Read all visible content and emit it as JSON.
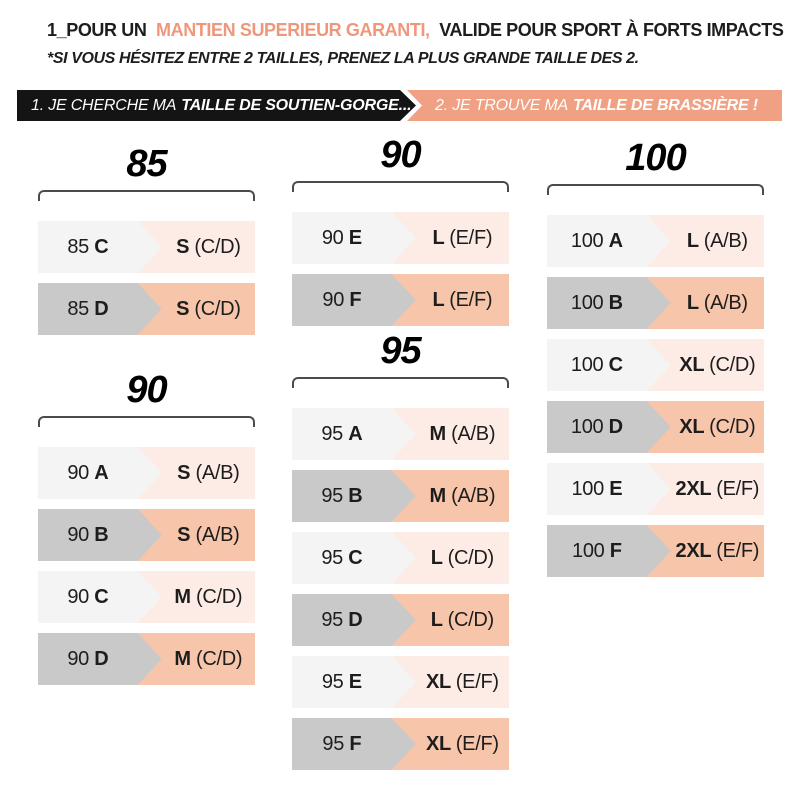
{
  "header": {
    "title_prefix": "1_POUR UN",
    "title_highlight": "MANTIEN SUPERIEUR GARANTI,",
    "title_suffix": "VALIDE POUR SPORT À FORTS IMPACTS",
    "subtitle": "*SI VOUS HÉSITEZ ENTRE 2 TAILLES, PRENEZ LA PLUS GRANDE TAILLE DES 2."
  },
  "steps": {
    "step1": {
      "prefix": "1. JE CHERCHE MA",
      "bold": "TAILLE DE SOUTIEN-GORGE..."
    },
    "step2": {
      "prefix": "2. JE TROUVE MA",
      "bold": "TAILLE DE BRASSIÈRE !"
    }
  },
  "columns": [
    {
      "groups": [
        {
          "title": "85",
          "rows": [
            {
              "from": "85",
              "cup": "C",
              "to": "S",
              "range": "(C/D)"
            },
            {
              "from": "85",
              "cup": "D",
              "to": "S",
              "range": "(C/D)"
            }
          ]
        },
        {
          "title": "90",
          "rows": [
            {
              "from": "90",
              "cup": "A",
              "to": "S",
              "range": "(A/B)"
            },
            {
              "from": "90",
              "cup": "B",
              "to": "S",
              "range": "(A/B)"
            },
            {
              "from": "90",
              "cup": "C",
              "to": "M",
              "range": "(C/D)"
            },
            {
              "from": "90",
              "cup": "D",
              "to": "M",
              "range": "(C/D)"
            }
          ]
        }
      ]
    },
    {
      "groups": [
        {
          "title": "90",
          "rows": [
            {
              "from": "90",
              "cup": "E",
              "to": "L",
              "range": "(E/F)"
            },
            {
              "from": "90",
              "cup": "F",
              "to": "L",
              "range": "(E/F)"
            }
          ]
        },
        {
          "title": "95",
          "rows": [
            {
              "from": "95",
              "cup": "A",
              "to": "M",
              "range": "(A/B)"
            },
            {
              "from": "95",
              "cup": "B",
              "to": "M",
              "range": "(A/B)"
            },
            {
              "from": "95",
              "cup": "C",
              "to": "L",
              "range": "(C/D)"
            },
            {
              "from": "95",
              "cup": "D",
              "to": "L",
              "range": "(C/D)"
            },
            {
              "from": "95",
              "cup": "E",
              "to": "XL",
              "range": "(E/F)"
            },
            {
              "from": "95",
              "cup": "F",
              "to": "XL",
              "range": "(E/F)"
            }
          ]
        }
      ]
    },
    {
      "groups": [
        {
          "title": "100",
          "rows": [
            {
              "from": "100",
              "cup": "A",
              "to": "L",
              "range": "(A/B)"
            },
            {
              "from": "100",
              "cup": "B",
              "to": "L",
              "range": "(A/B)"
            },
            {
              "from": "100",
              "cup": "C",
              "to": "XL",
              "range": "(C/D)"
            },
            {
              "from": "100",
              "cup": "D",
              "to": "XL",
              "range": "(C/D)"
            },
            {
              "from": "100",
              "cup": "E",
              "to": "2XL",
              "range": "(E/F)"
            },
            {
              "from": "100",
              "cup": "F",
              "to": "2XL",
              "range": "(E/F)"
            }
          ]
        }
      ]
    }
  ],
  "colors": {
    "accent_text": "#f0977b",
    "banner_black": "#141414",
    "banner_salmon": "#f0a183",
    "row_gray_light": "#f4f4f4",
    "row_gray_dark": "#c9c9c9",
    "row_peach_light": "#fdece5",
    "row_peach_dark": "#f6c5aa",
    "bracket": "#4b4b4b",
    "text": "#1d1d1d"
  }
}
